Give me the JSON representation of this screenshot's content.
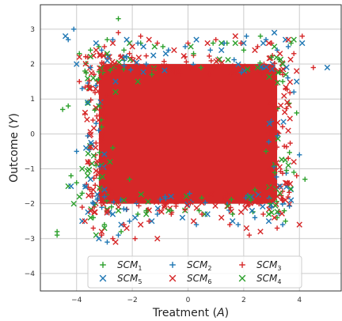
{
  "chart_data": {
    "type": "scatter",
    "xlabel": "Treatment",
    "xlabel_var": "A",
    "ylabel": "Outcome",
    "ylabel_var": "Y",
    "xlim": [
      -5.3,
      5.5
    ],
    "ylim": [
      -4.5,
      3.7
    ],
    "xticks": [
      -4,
      -2,
      0,
      2,
      4
    ],
    "yticks": [
      -4,
      -3,
      -2,
      -1,
      0,
      1,
      2,
      3
    ],
    "grid": true,
    "legend_position": "bottom-center",
    "series": [
      {
        "name": "SCM",
        "subscript": "1",
        "marker": "plus",
        "color": "#2ca02c",
        "points": [
          [
            -4.7,
            -2.8
          ],
          [
            -4.7,
            -2.9
          ],
          [
            -4.5,
            0.7
          ],
          [
            -4.3,
            0.8
          ],
          [
            -4.2,
            -1.2
          ],
          [
            -4.0,
            -1.4
          ],
          [
            -3.9,
            2.3
          ],
          [
            -3.8,
            -1.7
          ],
          [
            -3.7,
            1.8
          ],
          [
            -3.6,
            0.9
          ],
          [
            -3.5,
            2.4
          ],
          [
            -3.4,
            -2.4
          ],
          [
            -3.3,
            -0.9
          ],
          [
            -3.2,
            2.5
          ],
          [
            -3.1,
            0.2
          ],
          [
            -3.0,
            -2.6
          ],
          [
            -2.9,
            2.7
          ],
          [
            -2.7,
            -0.4
          ],
          [
            -2.5,
            3.3
          ],
          [
            -2.4,
            -2.8
          ],
          [
            -2.3,
            2.4
          ],
          [
            -2.1,
            -1.3
          ],
          [
            -1.8,
            -2.3
          ],
          [
            -1.7,
            2.6
          ],
          [
            -1.5,
            -2.2
          ],
          [
            -1.3,
            1.7
          ],
          [
            -0.9,
            2.5
          ],
          [
            -0.6,
            -2.2
          ],
          [
            0.2,
            2.3
          ],
          [
            0.4,
            -2.2
          ],
          [
            0.9,
            2.6
          ],
          [
            1.4,
            2.6
          ],
          [
            1.6,
            -2.3
          ],
          [
            2.0,
            2.4
          ],
          [
            2.4,
            -1.6
          ],
          [
            2.6,
            2.8
          ],
          [
            2.8,
            -0.5
          ],
          [
            3.0,
            2.2
          ],
          [
            3.2,
            -2.4
          ],
          [
            3.4,
            1.5
          ],
          [
            3.5,
            -2.5
          ],
          [
            3.7,
            2.6
          ],
          [
            3.8,
            -1.1
          ],
          [
            3.9,
            0.6
          ],
          [
            4.2,
            -1.3
          ]
        ]
      },
      {
        "name": "SCM",
        "subscript": "4",
        "marker": "x",
        "color": "#2ca02c",
        "points": [
          [
            -4.3,
            -1.5
          ],
          [
            -4.1,
            -2.0
          ],
          [
            -3.9,
            -1.8
          ],
          [
            -3.8,
            -1.0
          ],
          [
            -3.6,
            -1.2
          ],
          [
            -3.5,
            -2.4
          ],
          [
            -3.4,
            1.6
          ],
          [
            -3.3,
            -2.9
          ],
          [
            -3.2,
            0.8
          ],
          [
            -3.0,
            -2.7
          ],
          [
            -2.9,
            2.3
          ],
          [
            -2.8,
            -0.8
          ],
          [
            -2.6,
            1.2
          ],
          [
            -2.5,
            -2.2
          ],
          [
            -2.3,
            -1.9
          ],
          [
            -2.1,
            2.6
          ],
          [
            -1.8,
            1.5
          ],
          [
            -1.5,
            -2.3
          ],
          [
            -1.2,
            2.5
          ],
          [
            -0.7,
            -2.2
          ],
          [
            0.1,
            2.5
          ],
          [
            0.6,
            -2.3
          ],
          [
            1.2,
            2.6
          ],
          [
            1.7,
            2.6
          ],
          [
            2.2,
            -1.8
          ],
          [
            2.5,
            1.9
          ],
          [
            2.9,
            -2.3
          ],
          [
            3.1,
            2.5
          ],
          [
            3.3,
            -1.7
          ],
          [
            3.4,
            2.0
          ],
          [
            3.6,
            -0.9
          ],
          [
            3.8,
            2.7
          ]
        ]
      },
      {
        "name": "SCM",
        "subscript": "2",
        "marker": "plus",
        "color": "#1f77b4",
        "points": [
          [
            -4.3,
            2.7
          ],
          [
            -4.1,
            3.0
          ],
          [
            -4.0,
            -0.5
          ],
          [
            -3.8,
            1.3
          ],
          [
            -3.7,
            -1.5
          ],
          [
            -3.5,
            1.9
          ],
          [
            -3.4,
            -2.0
          ],
          [
            -3.3,
            0.3
          ],
          [
            -3.1,
            2.4
          ],
          [
            -3.0,
            -1.8
          ],
          [
            -2.9,
            -3.1
          ],
          [
            -2.7,
            2.7
          ],
          [
            -2.5,
            -2.9
          ],
          [
            -2.3,
            2.2
          ],
          [
            -2.1,
            -2.5
          ],
          [
            -1.8,
            2.6
          ],
          [
            -1.5,
            2.0
          ],
          [
            -1.1,
            -2.3
          ],
          [
            -0.7,
            2.4
          ],
          [
            -0.1,
            2.5
          ],
          [
            0.3,
            -2.6
          ],
          [
            0.8,
            2.4
          ],
          [
            1.3,
            2.6
          ],
          [
            1.8,
            -2.6
          ],
          [
            2.1,
            2.8
          ],
          [
            2.4,
            -2.4
          ],
          [
            2.8,
            2.7
          ],
          [
            3.0,
            -2.1
          ],
          [
            3.2,
            2.4
          ],
          [
            3.4,
            -2.6
          ],
          [
            3.6,
            2.5
          ],
          [
            3.8,
            1.2
          ],
          [
            4.0,
            -0.6
          ]
        ]
      },
      {
        "name": "SCM",
        "subscript": "5",
        "marker": "x",
        "color": "#1f77b4",
        "points": [
          [
            -4.4,
            2.8
          ],
          [
            -4.2,
            -1.5
          ],
          [
            -4.0,
            2.0
          ],
          [
            -3.8,
            -2.5
          ],
          [
            -3.6,
            0.9
          ],
          [
            -3.5,
            -1.3
          ],
          [
            -3.3,
            2.6
          ],
          [
            -3.2,
            -3.0
          ],
          [
            -3.0,
            -1.6
          ],
          [
            -2.9,
            2.1
          ],
          [
            -2.7,
            -2.3
          ],
          [
            -2.6,
            1.5
          ],
          [
            -2.4,
            -2.6
          ],
          [
            -2.2,
            2.7
          ],
          [
            -1.9,
            -2.4
          ],
          [
            -1.6,
            2.5
          ],
          [
            -1.3,
            -2.5
          ],
          [
            -0.8,
            2.3
          ],
          [
            -0.2,
            -2.4
          ],
          [
            0.3,
            2.7
          ],
          [
            0.7,
            -2.3
          ],
          [
            1.2,
            2.4
          ],
          [
            1.6,
            -2.5
          ],
          [
            2.0,
            2.6
          ],
          [
            2.3,
            -2.2
          ],
          [
            2.7,
            2.6
          ],
          [
            2.9,
            -2.5
          ],
          [
            3.1,
            2.9
          ],
          [
            3.3,
            -1.5
          ],
          [
            3.5,
            2.7
          ],
          [
            3.7,
            -1.9
          ],
          [
            3.9,
            1.5
          ],
          [
            4.1,
            2.6
          ],
          [
            5.0,
            1.9
          ]
        ]
      },
      {
        "name": "SCM",
        "subscript": "3",
        "marker": "plus",
        "color": "#d62728",
        "points": [
          [
            -3.9,
            1.5
          ],
          [
            -3.8,
            -2.1
          ],
          [
            -3.6,
            2.2
          ],
          [
            -3.5,
            -0.4
          ],
          [
            -3.4,
            -2.7
          ],
          [
            -3.2,
            1.2
          ],
          [
            -3.1,
            -2.9
          ],
          [
            -3.0,
            2.5
          ],
          [
            -2.8,
            -1.6
          ],
          [
            -2.7,
            -3.0
          ],
          [
            -2.5,
            2.9
          ],
          [
            -2.3,
            -2.6
          ],
          [
            -2.1,
            2.3
          ],
          [
            -1.9,
            -3.0
          ],
          [
            -1.7,
            2.8
          ],
          [
            -1.4,
            -2.5
          ],
          [
            -1.1,
            2.6
          ],
          [
            -0.6,
            -2.3
          ],
          [
            0.0,
            2.6
          ],
          [
            0.5,
            -2.3
          ],
          [
            1.0,
            2.7
          ],
          [
            1.5,
            -2.6
          ],
          [
            1.9,
            2.6
          ],
          [
            2.2,
            -2.9
          ],
          [
            2.5,
            2.5
          ],
          [
            2.7,
            -2.3
          ],
          [
            3.0,
            2.6
          ],
          [
            3.2,
            -2.7
          ],
          [
            3.4,
            1.7
          ],
          [
            3.6,
            -0.7
          ],
          [
            3.8,
            2.3
          ],
          [
            3.9,
            -1.2
          ],
          [
            4.1,
            2.8
          ],
          [
            4.5,
            1.9
          ]
        ]
      },
      {
        "name": "SCM",
        "subscript": "6",
        "marker": "x",
        "color": "#d62728",
        "points": [
          [
            -3.9,
            2.2
          ],
          [
            -3.7,
            -2.5
          ],
          [
            -3.5,
            1.3
          ],
          [
            -3.4,
            -1.6
          ],
          [
            -3.3,
            2.4
          ],
          [
            -3.1,
            -2.8
          ],
          [
            -3.0,
            0.5
          ],
          [
            -2.9,
            -2.2
          ],
          [
            -2.7,
            2.6
          ],
          [
            -2.6,
            -3.1
          ],
          [
            -2.4,
            2.2
          ],
          [
            -2.2,
            -2.7
          ],
          [
            -2.0,
            2.5
          ],
          [
            -1.7,
            -2.6
          ],
          [
            -1.4,
            2.7
          ],
          [
            -1.1,
            -3.0
          ],
          [
            -0.5,
            2.4
          ],
          [
            0.2,
            -2.5
          ],
          [
            0.7,
            2.6
          ],
          [
            1.2,
            -2.4
          ],
          [
            1.7,
            2.8
          ],
          [
            2.1,
            -2.7
          ],
          [
            2.4,
            2.4
          ],
          [
            2.6,
            -2.8
          ],
          [
            2.9,
            2.6
          ],
          [
            3.1,
            -2.4
          ],
          [
            3.3,
            2.3
          ],
          [
            3.5,
            -1.4
          ],
          [
            3.6,
            2.7
          ],
          [
            3.8,
            -0.8
          ],
          [
            3.9,
            1.8
          ],
          [
            4.0,
            -2.6
          ]
        ]
      }
    ],
    "dense_region": {
      "color": "#d62728",
      "x_range": [
        -3.2,
        3.2
      ],
      "y_range": [
        -2.0,
        2.0
      ]
    },
    "legend_columns": 3,
    "legend_order": [
      0,
      2,
      4,
      3,
      5,
      1
    ]
  }
}
